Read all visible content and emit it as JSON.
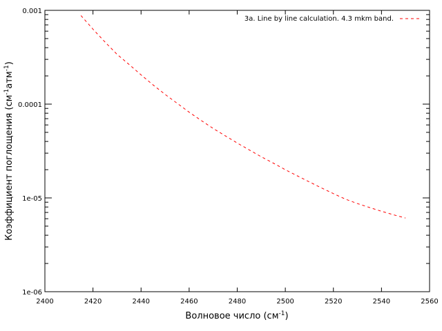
{
  "chart_data": {
    "type": "line",
    "title": "",
    "xlabel": {
      "text": "Волновое число (см",
      "sup": "-1",
      "tail": ")"
    },
    "ylabel": {
      "pre": "Коэффициент поглощения (см",
      "sup1": "-1",
      "mid": "атм",
      "sup2": "-1",
      "tail": ")"
    },
    "xlim": [
      2400,
      2560
    ],
    "ylim": [
      1e-06,
      0.001
    ],
    "yscale": "log",
    "grid": false,
    "legend_position": "top-right",
    "xticks": [
      {
        "value": 2400,
        "label": "2400"
      },
      {
        "value": 2420,
        "label": "2420"
      },
      {
        "value": 2440,
        "label": "2440"
      },
      {
        "value": 2460,
        "label": "2460"
      },
      {
        "value": 2480,
        "label": "2480"
      },
      {
        "value": 2500,
        "label": "2500"
      },
      {
        "value": 2520,
        "label": "2520"
      },
      {
        "value": 2540,
        "label": "2540"
      },
      {
        "value": 2560,
        "label": "2560"
      }
    ],
    "yticks": [
      {
        "value": 0.001,
        "label": "0.001"
      },
      {
        "value": 0.0001,
        "label": "0.0001"
      },
      {
        "value": 1e-05,
        "label": "1e-05"
      },
      {
        "value": 1e-06,
        "label": "1e-06"
      }
    ],
    "series": [
      {
        "name": "3a. Line by line calculation. 4.3 mkm band.",
        "color": "#ff0000",
        "style": "dashed",
        "x": [
          2415,
          2420,
          2425,
          2430,
          2435,
          2440,
          2445,
          2450,
          2455,
          2460,
          2465,
          2470,
          2475,
          2480,
          2485,
          2490,
          2495,
          2500,
          2505,
          2510,
          2515,
          2520,
          2525,
          2530,
          2535,
          2540,
          2545,
          2550
        ],
        "y": [
          0.00088,
          0.00063,
          0.00046,
          0.00034,
          0.000265,
          0.000205,
          0.00016,
          0.000127,
          0.000102,
          8.2e-05,
          6.7e-05,
          5.5e-05,
          4.6e-05,
          3.85e-05,
          3.25e-05,
          2.75e-05,
          2.35e-05,
          2e-05,
          1.72e-05,
          1.48e-05,
          1.28e-05,
          1.11e-05,
          9.7e-06,
          8.7e-06,
          7.9e-06,
          7.2e-06,
          6.6e-06,
          6.1e-06
        ]
      }
    ]
  }
}
